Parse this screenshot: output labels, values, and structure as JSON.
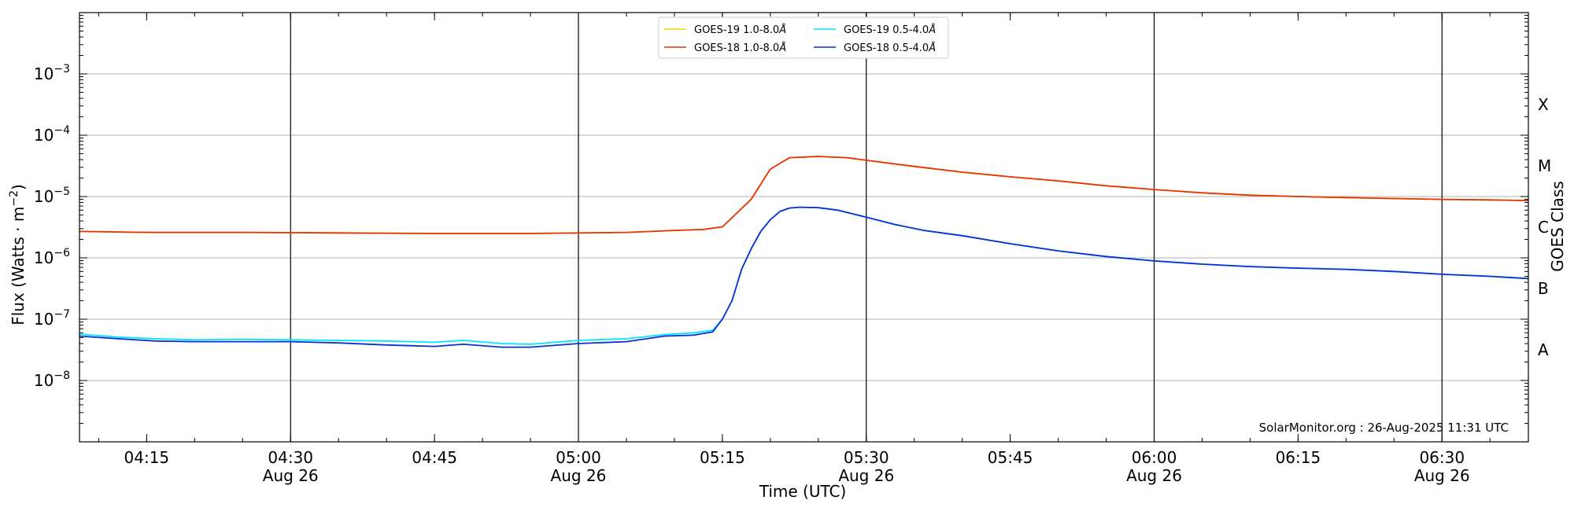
{
  "chart_data": {
    "type": "line",
    "title": "",
    "xlabel": "Time (UTC)",
    "ylabel_main": "Flux (Watts · m",
    "ylabel_sup": "−2",
    "ylabel_close": ")",
    "ylabel_right": "GOES Class",
    "y_scale": "log",
    "ylim": [
      1e-09,
      0.01
    ],
    "x_range": [
      "04:08",
      "06:39"
    ],
    "grid": "horizontal at decades, vertical at half-hours",
    "legend_position": "top-center",
    "watermark": "SolarMonitor.org : 26-Aug-2025 11:31 UTC",
    "y_ticks": [
      {
        "value": 1e-08,
        "base": "10",
        "exp": "−8"
      },
      {
        "value": 1e-07,
        "base": "10",
        "exp": "−7"
      },
      {
        "value": 1e-06,
        "base": "10",
        "exp": "−6"
      },
      {
        "value": 1e-05,
        "base": "10",
        "exp": "−5"
      },
      {
        "value": 0.0001,
        "base": "10",
        "exp": "−4"
      },
      {
        "value": 0.001,
        "base": "10",
        "exp": "−3"
      }
    ],
    "goes_classes": [
      {
        "label": "A",
        "value": 3.16e-08
      },
      {
        "label": "B",
        "value": 3.16e-07
      },
      {
        "label": "C",
        "value": 3.16e-06
      },
      {
        "label": "M",
        "value": 3.16e-05
      },
      {
        "label": "X",
        "value": 0.000316
      }
    ],
    "x_ticks": [
      {
        "time": "04:15",
        "label": "04:15",
        "date": ""
      },
      {
        "time": "04:30",
        "label": "04:30",
        "date": "Aug 26"
      },
      {
        "time": "04:45",
        "label": "04:45",
        "date": ""
      },
      {
        "time": "05:00",
        "label": "05:00",
        "date": "Aug 26"
      },
      {
        "time": "05:15",
        "label": "05:15",
        "date": ""
      },
      {
        "time": "05:30",
        "label": "05:30",
        "date": "Aug 26"
      },
      {
        "time": "05:45",
        "label": "05:45",
        "date": ""
      },
      {
        "time": "06:00",
        "label": "06:00",
        "date": "Aug 26"
      },
      {
        "time": "06:15",
        "label": "06:15",
        "date": ""
      },
      {
        "time": "06:30",
        "label": "06:30",
        "date": "Aug 26"
      }
    ],
    "series": [
      {
        "name": "GOES-19 1.0-8.0",
        "unit": "Å",
        "color": "#ffd700",
        "x": [
          "04:08",
          "04:15",
          "04:25",
          "04:35",
          "04:45",
          "04:55",
          "05:05",
          "05:10",
          "05:13",
          "05:15",
          "05:18",
          "05:20",
          "05:22",
          "05:25",
          "05:28",
          "05:30",
          "05:35",
          "05:40",
          "05:45",
          "05:50",
          "05:55",
          "06:00",
          "06:05",
          "06:10",
          "06:15",
          "06:20",
          "06:25",
          "06:30",
          "06:35",
          "06:39"
        ],
        "values": [
          2.7e-06,
          2.6e-06,
          2.6e-06,
          2.55e-06,
          2.5e-06,
          2.5e-06,
          2.6e-06,
          2.8e-06,
          2.9e-06,
          3.2e-06,
          9e-06,
          2.8e-05,
          4.3e-05,
          4.5e-05,
          4.3e-05,
          3.9e-05,
          3.1e-05,
          2.5e-05,
          2.1e-05,
          1.8e-05,
          1.5e-05,
          1.3e-05,
          1.15e-05,
          1.05e-05,
          1e-05,
          9.6e-06,
          9.3e-06,
          9e-06,
          8.8e-06,
          8.6e-06
        ]
      },
      {
        "name": "GOES-18 1.0-8.0",
        "unit": "Å",
        "color": "#e8300a",
        "x": [
          "04:08",
          "04:15",
          "04:25",
          "04:35",
          "04:45",
          "04:55",
          "05:05",
          "05:10",
          "05:13",
          "05:15",
          "05:18",
          "05:20",
          "05:22",
          "05:25",
          "05:28",
          "05:30",
          "05:35",
          "05:40",
          "05:45",
          "05:50",
          "05:55",
          "06:00",
          "06:05",
          "06:10",
          "06:15",
          "06:20",
          "06:25",
          "06:30",
          "06:35",
          "06:39"
        ],
        "values": [
          2.7e-06,
          2.6e-06,
          2.6e-06,
          2.55e-06,
          2.5e-06,
          2.5e-06,
          2.6e-06,
          2.8e-06,
          2.9e-06,
          3.2e-06,
          9e-06,
          2.8e-05,
          4.3e-05,
          4.5e-05,
          4.3e-05,
          3.9e-05,
          3.1e-05,
          2.5e-05,
          2.1e-05,
          1.8e-05,
          1.5e-05,
          1.3e-05,
          1.15e-05,
          1.05e-05,
          1e-05,
          9.6e-06,
          9.3e-06,
          9e-06,
          8.8e-06,
          8.6e-06
        ]
      },
      {
        "name": "GOES-19 0.5-4.0",
        "unit": "Å",
        "color": "#00e5ff",
        "x": [
          "04:08",
          "04:12",
          "04:16",
          "04:20",
          "04:25",
          "04:30",
          "04:35",
          "04:40",
          "04:45",
          "04:48",
          "04:52",
          "04:55",
          "05:00",
          "05:05",
          "05:09",
          "05:12",
          "05:14",
          "05:15",
          "05:16",
          "05:17",
          "05:18",
          "05:19",
          "05:20",
          "05:21",
          "05:22",
          "05:23",
          "05:25",
          "05:27",
          "05:30",
          "05:33",
          "05:36",
          "05:40",
          "05:45",
          "05:50",
          "05:55",
          "06:00",
          "06:05",
          "06:10",
          "06:15",
          "06:20",
          "06:25",
          "06:30",
          "06:35",
          "06:39"
        ],
        "values": [
          5.7e-08,
          5.1e-08,
          4.8e-08,
          4.6e-08,
          4.7e-08,
          4.6e-08,
          4.5e-08,
          4.4e-08,
          4.2e-08,
          4.5e-08,
          4e-08,
          3.9e-08,
          4.5e-08,
          4.8e-08,
          5.6e-08,
          6e-08,
          6.6e-08,
          1e-07,
          2e-07,
          6.5e-07,
          1.4e-06,
          2.7e-06,
          4.2e-06,
          5.7e-06,
          6.5e-06,
          6.7e-06,
          6.6e-06,
          6e-06,
          4.6e-06,
          3.5e-06,
          2.8e-06,
          2.3e-06,
          1.7e-06,
          1.3e-06,
          1.05e-06,
          8.9e-07,
          7.9e-07,
          7.2e-07,
          6.8e-07,
          6.5e-07,
          6e-07,
          5.4e-07,
          5e-07,
          4.6e-07
        ]
      },
      {
        "name": "GOES-18 0.5-4.0",
        "unit": "Å",
        "color": "#0b2fd6",
        "x": [
          "04:08",
          "04:12",
          "04:16",
          "04:20",
          "04:25",
          "04:30",
          "04:35",
          "04:40",
          "04:45",
          "04:48",
          "04:52",
          "04:55",
          "05:00",
          "05:05",
          "05:09",
          "05:12",
          "05:14",
          "05:15",
          "05:16",
          "05:17",
          "05:18",
          "05:19",
          "05:20",
          "05:21",
          "05:22",
          "05:23",
          "05:25",
          "05:27",
          "05:30",
          "05:33",
          "05:36",
          "05:40",
          "05:45",
          "05:50",
          "05:55",
          "06:00",
          "06:05",
          "06:10",
          "06:15",
          "06:20",
          "06:25",
          "06:30",
          "06:35",
          "06:39"
        ],
        "values": [
          5.3e-08,
          4.8e-08,
          4.4e-08,
          4.3e-08,
          4.3e-08,
          4.3e-08,
          4.1e-08,
          3.8e-08,
          3.6e-08,
          3.9e-08,
          3.5e-08,
          3.5e-08,
          4e-08,
          4.3e-08,
          5.3e-08,
          5.5e-08,
          6.2e-08,
          1e-07,
          2e-07,
          6.5e-07,
          1.4e-06,
          2.7e-06,
          4.2e-06,
          5.7e-06,
          6.5e-06,
          6.7e-06,
          6.6e-06,
          6e-06,
          4.6e-06,
          3.5e-06,
          2.8e-06,
          2.3e-06,
          1.7e-06,
          1.3e-06,
          1.05e-06,
          8.9e-07,
          7.9e-07,
          7.2e-07,
          6.8e-07,
          6.5e-07,
          6e-07,
          5.4e-07,
          5e-07,
          4.6e-07
        ]
      }
    ]
  }
}
